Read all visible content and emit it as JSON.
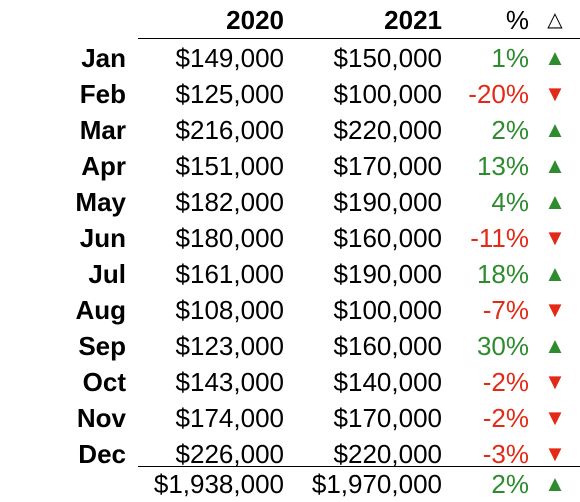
{
  "header": {
    "col_2020": "2020",
    "col_2021": "2021",
    "col_pct": "%",
    "col_delta": "△"
  },
  "rows": [
    {
      "month": "Jan",
      "v2020": "$149,000",
      "v2021": "$150,000",
      "pct": "1%",
      "dir": "up",
      "arrow": "▲"
    },
    {
      "month": "Feb",
      "v2020": "$125,000",
      "v2021": "$100,000",
      "pct": "-20%",
      "dir": "down",
      "arrow": "▼"
    },
    {
      "month": "Mar",
      "v2020": "$216,000",
      "v2021": "$220,000",
      "pct": "2%",
      "dir": "up",
      "arrow": "▲"
    },
    {
      "month": "Apr",
      "v2020": "$151,000",
      "v2021": "$170,000",
      "pct": "13%",
      "dir": "up",
      "arrow": "▲"
    },
    {
      "month": "May",
      "v2020": "$182,000",
      "v2021": "$190,000",
      "pct": "4%",
      "dir": "up",
      "arrow": "▲"
    },
    {
      "month": "Jun",
      "v2020": "$180,000",
      "v2021": "$160,000",
      "pct": "-11%",
      "dir": "down",
      "arrow": "▼"
    },
    {
      "month": "Jul",
      "v2020": "$161,000",
      "v2021": "$190,000",
      "pct": "18%",
      "dir": "up",
      "arrow": "▲"
    },
    {
      "month": "Aug",
      "v2020": "$108,000",
      "v2021": "$100,000",
      "pct": "-7%",
      "dir": "down",
      "arrow": "▼"
    },
    {
      "month": "Sep",
      "v2020": "$123,000",
      "v2021": "$160,000",
      "pct": "30%",
      "dir": "up",
      "arrow": "▲"
    },
    {
      "month": "Oct",
      "v2020": "$143,000",
      "v2021": "$140,000",
      "pct": "-2%",
      "dir": "down",
      "arrow": "▼"
    },
    {
      "month": "Nov",
      "v2020": "$174,000",
      "v2021": "$170,000",
      "pct": "-2%",
      "dir": "down",
      "arrow": "▼"
    },
    {
      "month": "Dec",
      "v2020": "$226,000",
      "v2021": "$220,000",
      "pct": "-3%",
      "dir": "down",
      "arrow": "▼"
    }
  ],
  "total": {
    "v2020": "$1,938,000",
    "v2021": "$1,970,000",
    "pct": "2%",
    "dir": "up",
    "arrow": "▲"
  },
  "colors": {
    "positive": "#2e8b2e",
    "negative": "#e32a17"
  }
}
